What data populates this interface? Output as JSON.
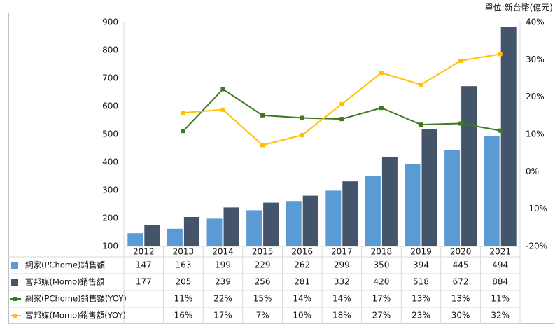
{
  "unit_label": "單位:新台幣(億元)",
  "colors": {
    "pchome_bar": "#5b9bd5",
    "momo_bar": "#44546a",
    "pchome_line": "#3c7a1d",
    "momo_line": "#ffc000",
    "grid": "#d9d9d9"
  },
  "chart_data": {
    "type": "bar",
    "title": "",
    "xlabel": "",
    "ylabel": "",
    "categories": [
      "2012",
      "2013",
      "2014",
      "2015",
      "2016",
      "2017",
      "2018",
      "2019",
      "2020",
      "2021"
    ],
    "ylim": [
      100,
      900
    ],
    "yticks": [
      "100",
      "200",
      "300",
      "400",
      "500",
      "600",
      "700",
      "800",
      "900"
    ],
    "y2lim": [
      -20,
      40
    ],
    "y2ticks": [
      "-20%",
      "-10%",
      "0%",
      "10%",
      "20%",
      "30%",
      "40%"
    ],
    "grid": false,
    "legend": "table-bottom",
    "series": [
      {
        "name": "網家(PChome)銷售額",
        "kind": "bar",
        "axis": "left",
        "values": [
          147,
          163,
          199,
          229,
          262,
          299,
          350,
          394,
          445,
          494
        ],
        "labels": [
          "147",
          "163",
          "199",
          "229",
          "262",
          "299",
          "350",
          "394",
          "445",
          "494"
        ]
      },
      {
        "name": "富邦媒(Momo)銷售額",
        "kind": "bar",
        "axis": "left",
        "values": [
          177,
          205,
          239,
          256,
          281,
          332,
          420,
          518,
          672,
          884
        ],
        "labels": [
          "177",
          "205",
          "239",
          "256",
          "281",
          "332",
          "420",
          "518",
          "672",
          "884"
        ]
      },
      {
        "name": "網家(PChome)銷售額(YOY)",
        "kind": "line",
        "axis": "right",
        "values": [
          null,
          10.9,
          22.1,
          15.1,
          14.4,
          14.1,
          17.1,
          12.6,
          12.9,
          11.0
        ],
        "labels": [
          "",
          "11%",
          "22%",
          "15%",
          "14%",
          "14%",
          "17%",
          "13%",
          "13%",
          "11%"
        ]
      },
      {
        "name": "富邦媒(Momo)銷售額(YOY)",
        "kind": "line",
        "axis": "right",
        "values": [
          null,
          15.8,
          16.6,
          7.1,
          9.8,
          18.1,
          26.5,
          23.3,
          29.7,
          31.5
        ],
        "labels": [
          "",
          "16%",
          "17%",
          "7%",
          "10%",
          "18%",
          "27%",
          "23%",
          "30%",
          "32%"
        ]
      }
    ]
  }
}
